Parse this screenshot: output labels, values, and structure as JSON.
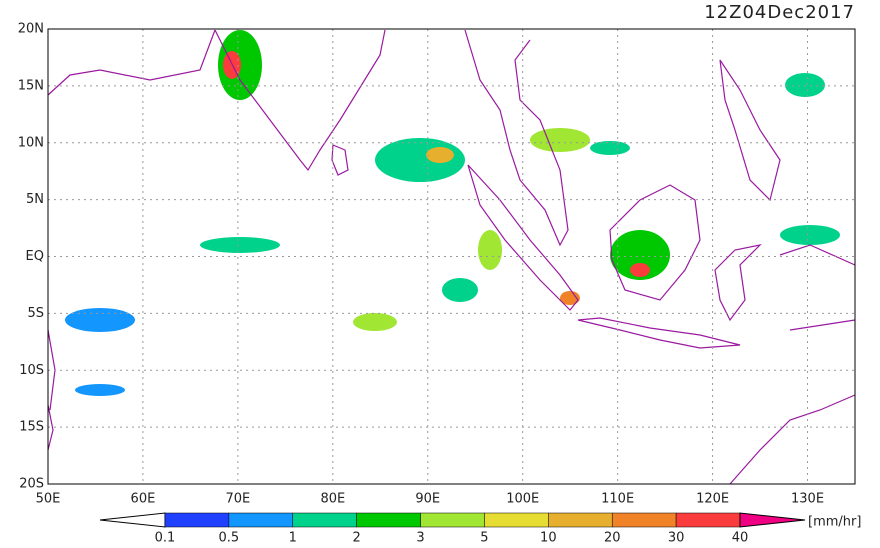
{
  "map": {
    "title": "12Z04Dec2017",
    "lonlim": [
      50,
      135
    ],
    "latlim": [
      -20,
      20
    ],
    "lon_labels": [
      {
        "value": 50,
        "label": "50E"
      },
      {
        "value": 60,
        "label": "60E"
      },
      {
        "value": 70,
        "label": "70E"
      },
      {
        "value": 80,
        "label": "80E"
      },
      {
        "value": 90,
        "label": "90E"
      },
      {
        "value": 100,
        "label": "100E"
      },
      {
        "value": 110,
        "label": "110E"
      },
      {
        "value": 120,
        "label": "120E"
      },
      {
        "value": 130,
        "label": "130E"
      }
    ],
    "lat_labels": [
      {
        "value": 20,
        "label": "20N"
      },
      {
        "value": 15,
        "label": "15N"
      },
      {
        "value": 10,
        "label": "10N"
      },
      {
        "value": 5,
        "label": "5N"
      },
      {
        "value": 0,
        "label": "EQ"
      },
      {
        "value": -5,
        "label": "5S"
      },
      {
        "value": -10,
        "label": "10S"
      },
      {
        "value": -15,
        "label": "15S"
      },
      {
        "value": -20,
        "label": "20S"
      }
    ],
    "grid": true
  },
  "colorbar": {
    "levels": [
      0.1,
      0.5,
      1,
      2,
      3,
      5,
      10,
      20,
      30,
      40
    ],
    "colors": [
      "#ffffff",
      "#2040ff",
      "#1496ff",
      "#00d28c",
      "#00c800",
      "#a0e632",
      "#e6dc32",
      "#e6af2d",
      "#f08228",
      "#fa3c3c",
      "#f00082"
    ],
    "unit": "[mm/hr]"
  }
}
